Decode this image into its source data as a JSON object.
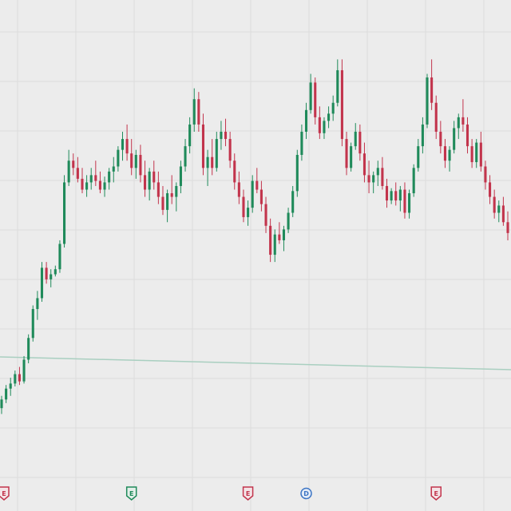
{
  "chart_data": {
    "type": "candlestick",
    "grid": true,
    "colors": {
      "up": "#1f8a5a",
      "down": "#c2344c",
      "grid": "#dcdcdc",
      "background": "#ececec",
      "baseline": "#a9cfc0"
    },
    "ylim": [
      0,
      640
    ],
    "baseline_value": 160,
    "candles": [
      {
        "o": 98,
        "h": 115,
        "l": 90,
        "c": 110
      },
      {
        "o": 110,
        "h": 130,
        "l": 105,
        "c": 125
      },
      {
        "o": 125,
        "h": 140,
        "l": 115,
        "c": 132
      },
      {
        "o": 132,
        "h": 150,
        "l": 128,
        "c": 145
      },
      {
        "o": 145,
        "h": 155,
        "l": 130,
        "c": 135
      },
      {
        "o": 135,
        "h": 170,
        "l": 132,
        "c": 165
      },
      {
        "o": 165,
        "h": 200,
        "l": 160,
        "c": 195
      },
      {
        "o": 195,
        "h": 240,
        "l": 190,
        "c": 235
      },
      {
        "o": 235,
        "h": 260,
        "l": 220,
        "c": 250
      },
      {
        "o": 250,
        "h": 300,
        "l": 245,
        "c": 292
      },
      {
        "o": 292,
        "h": 300,
        "l": 270,
        "c": 276
      },
      {
        "o": 276,
        "h": 290,
        "l": 265,
        "c": 283
      },
      {
        "o": 283,
        "h": 295,
        "l": 280,
        "c": 290
      },
      {
        "o": 290,
        "h": 330,
        "l": 285,
        "c": 325
      },
      {
        "o": 325,
        "h": 420,
        "l": 320,
        "c": 410
      },
      {
        "o": 410,
        "h": 455,
        "l": 405,
        "c": 440
      },
      {
        "o": 440,
        "h": 450,
        "l": 420,
        "c": 430
      },
      {
        "o": 430,
        "h": 445,
        "l": 410,
        "c": 415
      },
      {
        "o": 415,
        "h": 430,
        "l": 395,
        "c": 400
      },
      {
        "o": 400,
        "h": 420,
        "l": 390,
        "c": 410
      },
      {
        "o": 410,
        "h": 430,
        "l": 400,
        "c": 420
      },
      {
        "o": 420,
        "h": 440,
        "l": 405,
        "c": 412
      },
      {
        "o": 412,
        "h": 425,
        "l": 395,
        "c": 400
      },
      {
        "o": 400,
        "h": 418,
        "l": 390,
        "c": 410
      },
      {
        "o": 410,
        "h": 430,
        "l": 400,
        "c": 425
      },
      {
        "o": 425,
        "h": 445,
        "l": 410,
        "c": 432
      },
      {
        "o": 432,
        "h": 460,
        "l": 425,
        "c": 455
      },
      {
        "o": 455,
        "h": 480,
        "l": 440,
        "c": 470
      },
      {
        "o": 470,
        "h": 490,
        "l": 440,
        "c": 450
      },
      {
        "o": 450,
        "h": 470,
        "l": 420,
        "c": 430
      },
      {
        "o": 430,
        "h": 455,
        "l": 415,
        "c": 448
      },
      {
        "o": 448,
        "h": 462,
        "l": 410,
        "c": 420
      },
      {
        "o": 420,
        "h": 440,
        "l": 390,
        "c": 400
      },
      {
        "o": 400,
        "h": 430,
        "l": 385,
        "c": 425
      },
      {
        "o": 425,
        "h": 440,
        "l": 400,
        "c": 410
      },
      {
        "o": 410,
        "h": 425,
        "l": 380,
        "c": 390
      },
      {
        "o": 390,
        "h": 405,
        "l": 365,
        "c": 372
      },
      {
        "o": 372,
        "h": 400,
        "l": 355,
        "c": 395
      },
      {
        "o": 395,
        "h": 420,
        "l": 380,
        "c": 390
      },
      {
        "o": 390,
        "h": 410,
        "l": 370,
        "c": 405
      },
      {
        "o": 405,
        "h": 440,
        "l": 395,
        "c": 432
      },
      {
        "o": 432,
        "h": 470,
        "l": 425,
        "c": 460
      },
      {
        "o": 460,
        "h": 500,
        "l": 450,
        "c": 490
      },
      {
        "o": 490,
        "h": 540,
        "l": 480,
        "c": 525
      },
      {
        "o": 525,
        "h": 535,
        "l": 480,
        "c": 490
      },
      {
        "o": 490,
        "h": 505,
        "l": 420,
        "c": 430
      },
      {
        "o": 430,
        "h": 455,
        "l": 405,
        "c": 445
      },
      {
        "o": 445,
        "h": 470,
        "l": 420,
        "c": 430
      },
      {
        "o": 430,
        "h": 480,
        "l": 425,
        "c": 470
      },
      {
        "o": 470,
        "h": 495,
        "l": 455,
        "c": 480
      },
      {
        "o": 480,
        "h": 498,
        "l": 460,
        "c": 470
      },
      {
        "o": 470,
        "h": 480,
        "l": 430,
        "c": 440
      },
      {
        "o": 440,
        "h": 450,
        "l": 400,
        "c": 410
      },
      {
        "o": 410,
        "h": 425,
        "l": 380,
        "c": 390
      },
      {
        "o": 390,
        "h": 400,
        "l": 355,
        "c": 362
      },
      {
        "o": 362,
        "h": 385,
        "l": 350,
        "c": 375
      },
      {
        "o": 375,
        "h": 420,
        "l": 368,
        "c": 412
      },
      {
        "o": 412,
        "h": 430,
        "l": 395,
        "c": 400
      },
      {
        "o": 400,
        "h": 412,
        "l": 370,
        "c": 380
      },
      {
        "o": 380,
        "h": 390,
        "l": 340,
        "c": 350
      },
      {
        "o": 350,
        "h": 360,
        "l": 300,
        "c": 310
      },
      {
        "o": 310,
        "h": 345,
        "l": 300,
        "c": 338
      },
      {
        "o": 338,
        "h": 355,
        "l": 325,
        "c": 330
      },
      {
        "o": 330,
        "h": 350,
        "l": 315,
        "c": 345
      },
      {
        "o": 345,
        "h": 375,
        "l": 340,
        "c": 368
      },
      {
        "o": 368,
        "h": 405,
        "l": 362,
        "c": 398
      },
      {
        "o": 398,
        "h": 455,
        "l": 390,
        "c": 448
      },
      {
        "o": 448,
        "h": 490,
        "l": 440,
        "c": 480
      },
      {
        "o": 480,
        "h": 520,
        "l": 470,
        "c": 510
      },
      {
        "o": 510,
        "h": 560,
        "l": 505,
        "c": 548
      },
      {
        "o": 548,
        "h": 555,
        "l": 490,
        "c": 500
      },
      {
        "o": 500,
        "h": 515,
        "l": 470,
        "c": 478
      },
      {
        "o": 478,
        "h": 500,
        "l": 470,
        "c": 495
      },
      {
        "o": 495,
        "h": 515,
        "l": 485,
        "c": 505
      },
      {
        "o": 505,
        "h": 530,
        "l": 495,
        "c": 520
      },
      {
        "o": 520,
        "h": 580,
        "l": 515,
        "c": 565
      },
      {
        "o": 565,
        "h": 580,
        "l": 460,
        "c": 470
      },
      {
        "o": 470,
        "h": 480,
        "l": 420,
        "c": 430
      },
      {
        "o": 430,
        "h": 465,
        "l": 425,
        "c": 460
      },
      {
        "o": 460,
        "h": 492,
        "l": 455,
        "c": 480
      },
      {
        "o": 480,
        "h": 490,
        "l": 440,
        "c": 450
      },
      {
        "o": 450,
        "h": 465,
        "l": 410,
        "c": 420
      },
      {
        "o": 420,
        "h": 440,
        "l": 395,
        "c": 410
      },
      {
        "o": 410,
        "h": 425,
        "l": 395,
        "c": 420
      },
      {
        "o": 420,
        "h": 440,
        "l": 405,
        "c": 430
      },
      {
        "o": 430,
        "h": 445,
        "l": 400,
        "c": 405
      },
      {
        "o": 405,
        "h": 415,
        "l": 375,
        "c": 385
      },
      {
        "o": 385,
        "h": 402,
        "l": 380,
        "c": 398
      },
      {
        "o": 398,
        "h": 410,
        "l": 378,
        "c": 385
      },
      {
        "o": 385,
        "h": 405,
        "l": 370,
        "c": 400
      },
      {
        "o": 400,
        "h": 410,
        "l": 360,
        "c": 368
      },
      {
        "o": 368,
        "h": 400,
        "l": 360,
        "c": 395
      },
      {
        "o": 395,
        "h": 435,
        "l": 390,
        "c": 430
      },
      {
        "o": 430,
        "h": 470,
        "l": 425,
        "c": 460
      },
      {
        "o": 460,
        "h": 500,
        "l": 450,
        "c": 490
      },
      {
        "o": 490,
        "h": 560,
        "l": 485,
        "c": 555
      },
      {
        "o": 555,
        "h": 580,
        "l": 510,
        "c": 520
      },
      {
        "o": 520,
        "h": 530,
        "l": 470,
        "c": 480
      },
      {
        "o": 480,
        "h": 495,
        "l": 450,
        "c": 460
      },
      {
        "o": 460,
        "h": 470,
        "l": 430,
        "c": 440
      },
      {
        "o": 440,
        "h": 460,
        "l": 425,
        "c": 455
      },
      {
        "o": 455,
        "h": 495,
        "l": 450,
        "c": 485
      },
      {
        "o": 485,
        "h": 505,
        "l": 470,
        "c": 500
      },
      {
        "o": 500,
        "h": 525,
        "l": 480,
        "c": 490
      },
      {
        "o": 490,
        "h": 500,
        "l": 450,
        "c": 460
      },
      {
        "o": 460,
        "h": 470,
        "l": 430,
        "c": 438
      },
      {
        "o": 438,
        "h": 470,
        "l": 430,
        "c": 465
      },
      {
        "o": 465,
        "h": 480,
        "l": 425,
        "c": 432
      },
      {
        "o": 432,
        "h": 440,
        "l": 400,
        "c": 410
      },
      {
        "o": 410,
        "h": 420,
        "l": 380,
        "c": 390
      },
      {
        "o": 390,
        "h": 400,
        "l": 360,
        "c": 368
      },
      {
        "o": 368,
        "h": 385,
        "l": 355,
        "c": 378
      },
      {
        "o": 378,
        "h": 390,
        "l": 350,
        "c": 355
      },
      {
        "o": 355,
        "h": 370,
        "l": 330,
        "c": 340
      }
    ],
    "markers": [
      {
        "label": "E",
        "kind": "earnings-down",
        "index": 0
      },
      {
        "label": "E",
        "kind": "earnings-up",
        "index": 29
      },
      {
        "label": "E",
        "kind": "earnings-down",
        "index": 55
      },
      {
        "label": "D",
        "kind": "dividend",
        "index": 68
      },
      {
        "label": "E",
        "kind": "earnings-down",
        "index": 97
      }
    ]
  }
}
